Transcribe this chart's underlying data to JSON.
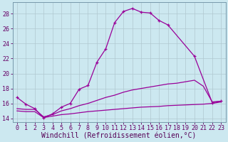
{
  "bg_color": "#cce8f0",
  "line_color": "#990099",
  "grid_color": "#b0c8d0",
  "xlabel": "Windchill (Refroidissement éolien,°C)",
  "xlabel_fontsize": 7,
  "tick_fontsize": 6,
  "ylim": [
    13.5,
    29.5
  ],
  "xlim": [
    -0.5,
    23.5
  ],
  "yticks": [
    14,
    16,
    18,
    20,
    22,
    24,
    26,
    28
  ],
  "xticks": [
    0,
    1,
    2,
    3,
    4,
    5,
    6,
    7,
    8,
    9,
    10,
    11,
    12,
    13,
    14,
    15,
    16,
    17,
    18,
    19,
    20,
    21,
    22,
    23
  ],
  "curve_main_x": [
    0,
    1,
    2,
    3,
    4,
    5,
    6,
    7,
    8,
    9,
    10,
    11,
    12,
    13,
    14,
    15,
    16,
    17,
    20,
    22,
    23
  ],
  "curve_main_y": [
    16.8,
    15.9,
    15.3,
    14.1,
    14.6,
    15.5,
    16.0,
    17.9,
    18.4,
    21.5,
    23.3,
    26.8,
    28.3,
    28.7,
    28.2,
    28.1,
    27.1,
    26.5,
    22.3,
    16.1,
    16.3
  ],
  "curve_mid_x": [
    0,
    1,
    2,
    3,
    4,
    5,
    6,
    7,
    8,
    9,
    10,
    11,
    12,
    13,
    14,
    15,
    16,
    17,
    18,
    19,
    20,
    21,
    22,
    23
  ],
  "curve_mid_y": [
    15.3,
    15.2,
    15.2,
    14.2,
    14.5,
    15.0,
    15.3,
    15.7,
    16.0,
    16.4,
    16.8,
    17.1,
    17.5,
    17.8,
    18.0,
    18.2,
    18.4,
    18.6,
    18.7,
    18.9,
    19.1,
    18.3,
    16.2,
    16.3
  ],
  "curve_low_x": [
    0,
    1,
    2,
    3,
    4,
    5,
    6,
    7,
    8,
    9,
    10,
    11,
    12,
    13,
    14,
    15,
    16,
    17,
    18,
    19,
    20,
    21,
    22,
    23
  ],
  "curve_low_y": [
    15.0,
    14.9,
    14.9,
    14.1,
    14.3,
    14.5,
    14.6,
    14.75,
    14.9,
    15.0,
    15.1,
    15.2,
    15.3,
    15.4,
    15.5,
    15.55,
    15.6,
    15.7,
    15.75,
    15.8,
    15.85,
    15.9,
    16.0,
    16.2
  ]
}
